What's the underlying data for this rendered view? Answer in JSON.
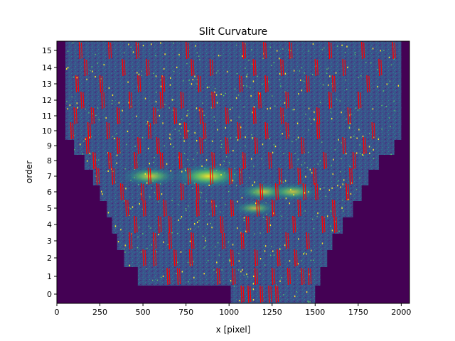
{
  "chart_data": {
    "type": "heatmap",
    "title": "Slit Curvature",
    "xlabel": "x [pixel]",
    "ylabel": "order",
    "xlim": [
      0,
      2048
    ],
    "x_ticks": [
      0,
      250,
      500,
      750,
      1000,
      1250,
      1500,
      1750,
      2000
    ],
    "x_tick_labels": [
      "0",
      "250",
      "500",
      "750",
      "1000",
      "1250",
      "1500",
      "1750",
      "2000"
    ],
    "y_ticks": [
      0,
      1,
      2,
      3,
      4,
      5,
      6,
      7,
      8,
      9,
      10,
      11,
      12,
      13,
      14,
      15
    ],
    "y_tick_labels": [
      "0",
      "1",
      "2",
      "3",
      "4",
      "5",
      "6",
      "7",
      "8",
      "9",
      "10",
      "11",
      "12",
      "13",
      "14",
      "15"
    ],
    "grid": false,
    "colormap": "viridis",
    "background_color": "#440154",
    "order_extents": [
      {
        "order": 0,
        "x_start": 1010,
        "x_end": 1500
      },
      {
        "order": 1,
        "x_start": 470,
        "x_end": 1530
      },
      {
        "order": 2,
        "x_start": 390,
        "x_end": 1570
      },
      {
        "order": 3,
        "x_start": 350,
        "x_end": 1600
      },
      {
        "order": 4,
        "x_start": 320,
        "x_end": 1660
      },
      {
        "order": 5,
        "x_start": 290,
        "x_end": 1720
      },
      {
        "order": 6,
        "x_start": 250,
        "x_end": 1770
      },
      {
        "order": 7,
        "x_start": 210,
        "x_end": 1810
      },
      {
        "order": 8,
        "x_start": 160,
        "x_end": 1870
      },
      {
        "order": 9,
        "x_start": 100,
        "x_end": 1960
      },
      {
        "order": 10,
        "x_start": 50,
        "x_end": 2000
      },
      {
        "order": 11,
        "x_start": 50,
        "x_end": 2000
      },
      {
        "order": 12,
        "x_start": 50,
        "x_end": 2000
      },
      {
        "order": 13,
        "x_start": 50,
        "x_end": 2000
      },
      {
        "order": 14,
        "x_start": 50,
        "x_end": 2000
      },
      {
        "order": 15,
        "x_start": 50,
        "x_end": 2000
      }
    ],
    "line_color": "#ff0000",
    "line_positions": [
      {
        "order": 0,
        "x": [
          1070,
          1110,
          1180,
          1230,
          1270
        ]
      },
      {
        "order": 1,
        "x": [
          640,
          700,
          930,
          1020,
          1150,
          1250,
          1340,
          1420,
          1460
        ]
      },
      {
        "order": 2,
        "x": [
          500,
          560,
          680,
          770,
          1010,
          1150,
          1280,
          1380
        ]
      },
      {
        "order": 3,
        "x": [
          420,
          560,
          650,
          780,
          960,
          1070,
          1330,
          1450
        ]
      },
      {
        "order": 4,
        "x": [
          450,
          590,
          650,
          950,
          1100,
          1220,
          1370,
          1540,
          1610
        ]
      },
      {
        "order": 5,
        "x": [
          400,
          500,
          620,
          810,
          900,
          1010,
          1160,
          1250,
          1400,
          1600
        ]
      },
      {
        "order": 6,
        "x": [
          370,
          490,
          580,
          720,
          810,
          1180,
          1270,
          1430,
          1500,
          1680
        ]
      },
      {
        "order": 7,
        "x": [
          230,
          320,
          530,
          760,
          890,
          1000,
          1060,
          1290,
          1400,
          1490,
          1700
        ]
      },
      {
        "order": 8,
        "x": [
          210,
          300,
          450,
          600,
          710,
          900,
          1080,
          1230,
          1350,
          1550,
          1720
        ]
      },
      {
        "order": 9,
        "x": [
          170,
          350,
          470,
          580,
          830,
          980,
          1150,
          1420,
          1660,
          1780
        ]
      },
      {
        "order": 10,
        "x": [
          80,
          180,
          290,
          530,
          740,
          850,
          1050,
          1210,
          1330,
          1510,
          1830
        ]
      },
      {
        "order": 11,
        "x": [
          100,
          200,
          350,
          560,
          680,
          830,
          980,
          1140,
          1300,
          1510,
          1690
        ]
      },
      {
        "order": 12,
        "x": [
          140,
          260,
          420,
          600,
          720,
          900,
          1170,
          1330,
          1580,
          1750
        ]
      },
      {
        "order": 13,
        "x": [
          110,
          250,
          470,
          610,
          820,
          1060,
          1210,
          1450,
          1600,
          1800
        ]
      },
      {
        "order": 14,
        "x": [
          160,
          380,
          520,
          780,
          890,
          1140,
          1300,
          1500,
          1660,
          1870
        ]
      },
      {
        "order": 15,
        "x": [
          130,
          300,
          460,
          750,
          1080,
          1200,
          1350,
          1580,
          1770,
          1950
        ]
      }
    ],
    "bright_features": [
      {
        "order": 7,
        "x": 880,
        "intensity": 1.0
      },
      {
        "order": 7,
        "x": 540,
        "intensity": 0.7
      },
      {
        "order": 6,
        "x": 1200,
        "intensity": 0.6
      },
      {
        "order": 6,
        "x": 1370,
        "intensity": 0.55
      },
      {
        "order": 5,
        "x": 1150,
        "intensity": 0.4
      }
    ]
  }
}
